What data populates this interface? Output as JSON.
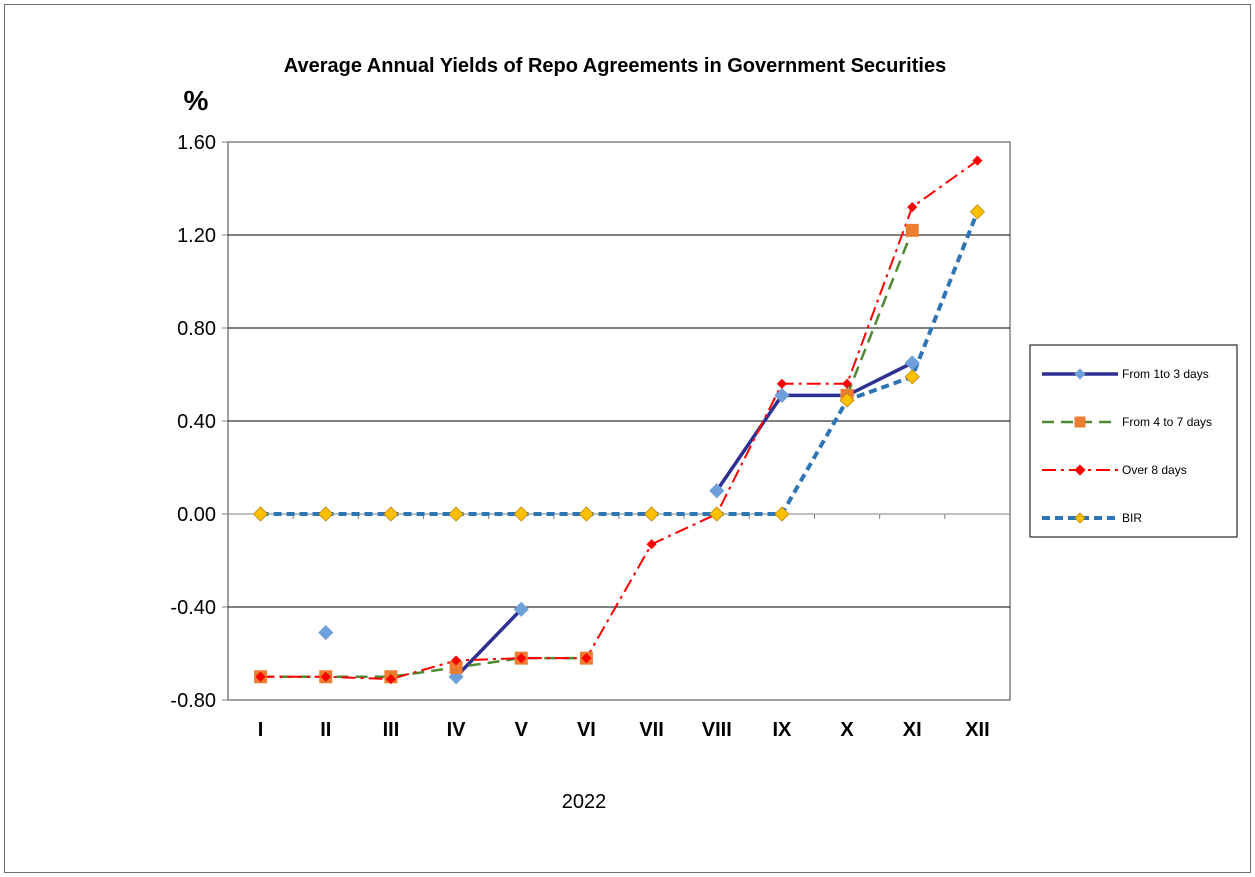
{
  "chart_data": {
    "type": "line",
    "title": "Average Annual Yields of Repo Agreements in Government Securities",
    "ylabel": "%",
    "xlabel": "2022",
    "categories": [
      "I",
      "II",
      "III",
      "IV",
      "V",
      "VI",
      "VII",
      "VIII",
      "IX",
      "X",
      "XI",
      "XII"
    ],
    "ylim": [
      -0.8,
      1.6
    ],
    "yticks": [
      -0.8,
      -0.4,
      0.0,
      0.4,
      0.8,
      1.2,
      1.6
    ],
    "ytick_labels": [
      "-0.80",
      "-0.40",
      "0.00",
      "0.40",
      "0.80",
      "1.20",
      "1.60"
    ],
    "grid": "horizontal",
    "legend_position": "right",
    "series": [
      {
        "name": "From 1to 3 days",
        "color": "#2e3192",
        "marker_color": "#6fa0dc",
        "line_style": "solid",
        "marker": "diamond",
        "values": [
          null,
          -0.51,
          null,
          -0.7,
          -0.41,
          null,
          null,
          0.1,
          0.51,
          0.51,
          0.65,
          null
        ]
      },
      {
        "name": "From 4 to 7 days",
        "color": "#4e8a32",
        "marker_color": "#ed7d31",
        "line_style": "dash",
        "marker": "square",
        "values": [
          -0.7,
          -0.7,
          -0.7,
          -0.66,
          -0.62,
          -0.62,
          null,
          null,
          null,
          0.51,
          1.22,
          null
        ]
      },
      {
        "name": "Over 8 days",
        "color": "#ff0000",
        "marker_color": "#ff0000",
        "line_style": "dashdot",
        "marker": "diamond",
        "values": [
          -0.7,
          -0.7,
          -0.71,
          -0.63,
          -0.62,
          -0.62,
          -0.13,
          0.0,
          0.56,
          0.56,
          1.32,
          1.52
        ]
      },
      {
        "name": "BIR",
        "color": "#2e75b6",
        "marker_color": "#ffc000",
        "line_style": "short-dash",
        "marker": "diamond",
        "values": [
          0.0,
          0.0,
          0.0,
          0.0,
          0.0,
          0.0,
          0.0,
          0.0,
          0.0,
          0.49,
          0.59,
          1.3
        ]
      }
    ]
  }
}
